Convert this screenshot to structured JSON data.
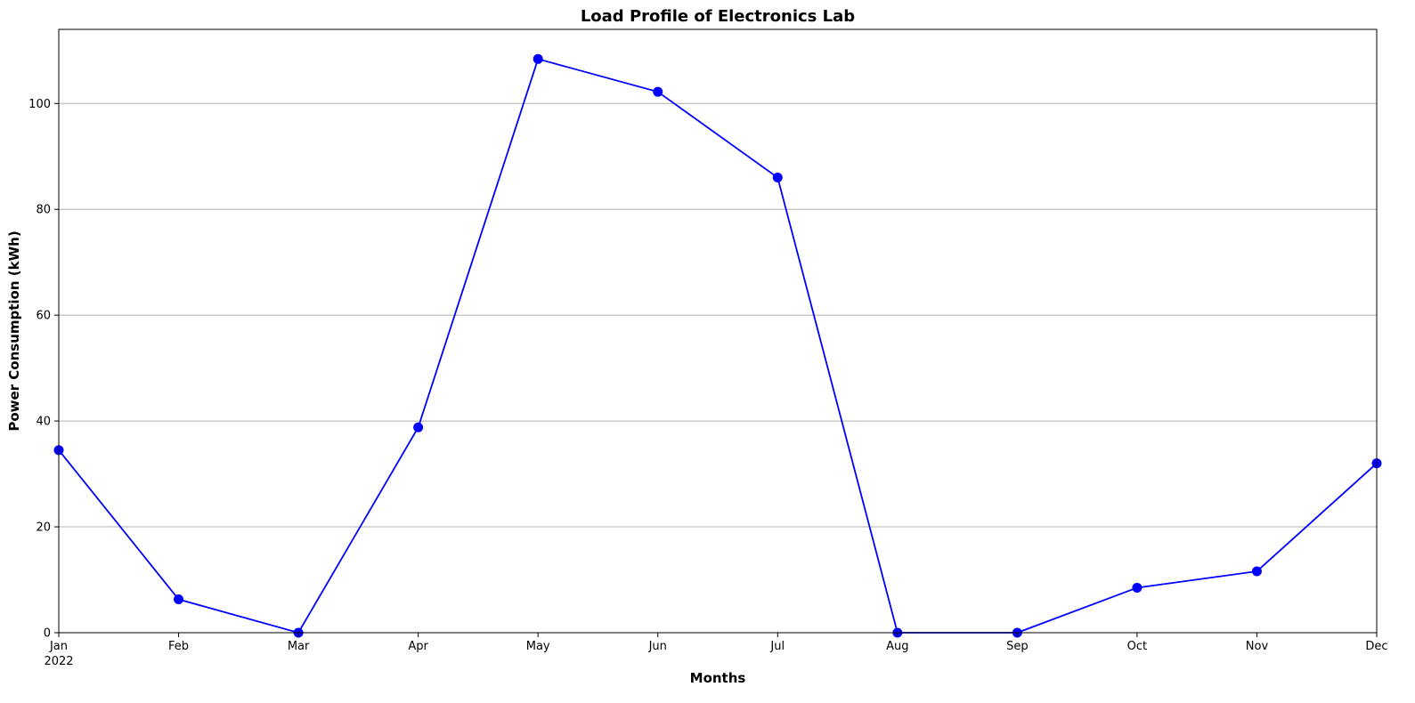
{
  "chart_data": {
    "type": "line",
    "title": "Load Profile of Electronics Lab",
    "xlabel": "Months",
    "ylabel": "Power Consumption (kWh)",
    "categories": [
      "Jan",
      "Feb",
      "Mar",
      "Apr",
      "May",
      "Jun",
      "Jul",
      "Aug",
      "Sep",
      "Oct",
      "Nov",
      "Dec"
    ],
    "year_label": "2022",
    "values": [
      34.5,
      6.3,
      0,
      38.8,
      108.4,
      102.2,
      86.0,
      0,
      0,
      8.5,
      11.6,
      32.0
    ],
    "ylim": [
      0,
      114
    ],
    "yticks": [
      0,
      20,
      40,
      60,
      80,
      100
    ],
    "grid": "y-only",
    "color": "#0000ff",
    "marker": "circle"
  }
}
